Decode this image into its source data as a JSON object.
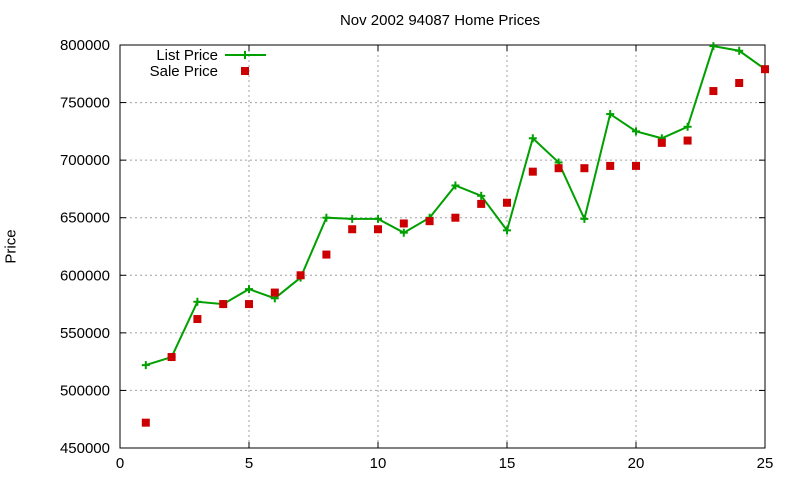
{
  "chart_data": {
    "type": "line",
    "title": "Nov 2002 94087 Home Prices",
    "xlabel": "",
    "ylabel": "Price",
    "xlim": [
      0,
      25
    ],
    "ylim": [
      450000,
      800000
    ],
    "xticks": [
      0,
      5,
      10,
      15,
      20,
      25
    ],
    "yticks": [
      450000,
      500000,
      550000,
      600000,
      650000,
      700000,
      750000,
      800000
    ],
    "grid": true,
    "legend_position": "top-left",
    "series": [
      {
        "name": "List Price",
        "style": "line+plus",
        "color": "#00a000",
        "x": [
          1,
          2,
          3,
          4,
          5,
          6,
          7,
          8,
          9,
          10,
          11,
          12,
          13,
          14,
          15,
          16,
          17,
          18,
          19,
          20,
          21,
          22,
          23,
          24,
          25
        ],
        "y": [
          522000,
          529000,
          577000,
          575000,
          588000,
          580000,
          598000,
          650000,
          649000,
          649000,
          637000,
          650000,
          678000,
          669000,
          639000,
          719000,
          698000,
          649000,
          740000,
          725000,
          719000,
          729000,
          799000,
          795000,
          779000
        ]
      },
      {
        "name": "Sale Price",
        "style": "square-points",
        "color": "#cc0000",
        "x": [
          1,
          2,
          3,
          4,
          5,
          6,
          7,
          8,
          9,
          10,
          11,
          12,
          13,
          14,
          15,
          16,
          17,
          18,
          19,
          20,
          21,
          22,
          23,
          24,
          25
        ],
        "y": [
          472000,
          529000,
          562000,
          575000,
          575000,
          585000,
          600000,
          618000,
          640000,
          640000,
          645000,
          647000,
          650000,
          662000,
          663000,
          690000,
          693000,
          693000,
          695000,
          695000,
          715000,
          717000,
          760000,
          767000,
          779000
        ]
      }
    ]
  }
}
